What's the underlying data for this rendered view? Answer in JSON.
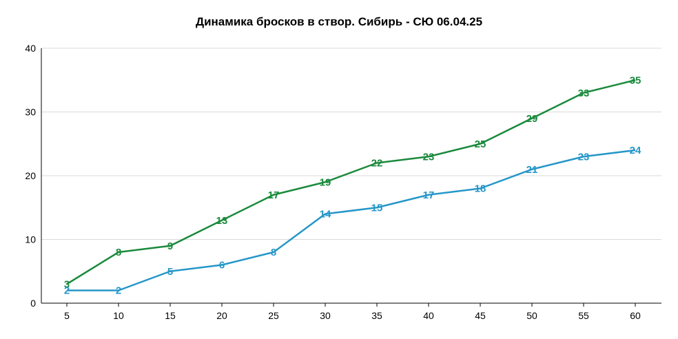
{
  "chart_data": {
    "type": "line",
    "title": "Динамика бросков в створ. Сибирь - СЮ 06.04.25",
    "xlabel": "",
    "ylabel": "",
    "x": [
      5,
      10,
      15,
      20,
      25,
      30,
      35,
      40,
      45,
      50,
      55,
      60
    ],
    "xlim": [
      5,
      60
    ],
    "ylim": [
      0,
      40
    ],
    "yticks": [
      0,
      10,
      20,
      30,
      40
    ],
    "grid": true,
    "legend": "none",
    "series": [
      {
        "color": "#1a8a3c",
        "values": [
          3,
          8,
          9,
          13,
          17,
          19,
          22,
          23,
          25,
          29,
          33,
          35
        ]
      },
      {
        "color": "#2596c8",
        "values": [
          2,
          2,
          5,
          6,
          8,
          14,
          15,
          17,
          18,
          21,
          23,
          24
        ]
      }
    ]
  }
}
